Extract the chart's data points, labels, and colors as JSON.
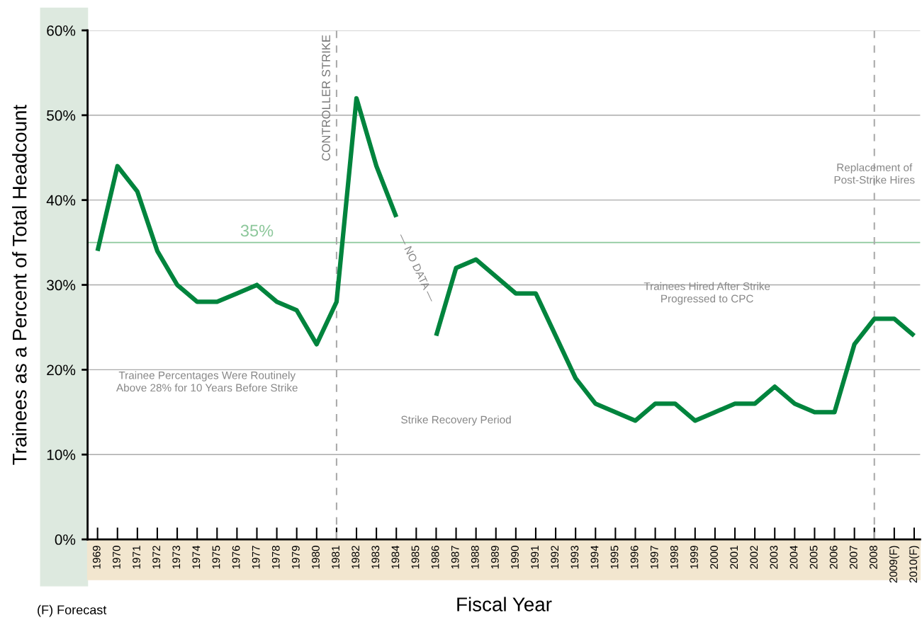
{
  "chart_data": {
    "type": "line",
    "xlabel": "Fiscal Year",
    "ylabel": "Trainees as a Percent of Total Headcount",
    "categories": [
      "1969",
      "1970",
      "1971",
      "1972",
      "1973",
      "1974",
      "1975",
      "1976",
      "1977",
      "1978",
      "1979",
      "1980",
      "1981",
      "1982",
      "1983",
      "1984",
      "1985",
      "1986",
      "1987",
      "1988",
      "1989",
      "1990",
      "1991",
      "1992",
      "1993",
      "1994",
      "1995",
      "1996",
      "1997",
      "1998",
      "1999",
      "2000",
      "2001",
      "2002",
      "2003",
      "2004",
      "2005",
      "2006",
      "2007",
      "2008",
      "2009(F)",
      "2010(F)"
    ],
    "series": [
      {
        "color": "#00843d",
        "values": [
          34,
          44,
          41,
          34,
          30,
          28,
          28,
          29,
          30,
          28,
          27,
          23,
          28,
          52,
          44,
          38,
          null,
          24,
          32,
          33,
          31,
          29,
          29,
          24,
          19,
          16,
          15,
          14,
          16,
          16,
          14,
          15,
          16,
          16,
          18,
          16,
          15,
          15,
          23,
          26,
          26,
          24
        ]
      }
    ],
    "ylim": [
      0,
      60
    ],
    "yticks": [
      {
        "value": 0,
        "label": "0%"
      },
      {
        "value": 10,
        "label": "10%"
      },
      {
        "value": 20,
        "label": "20%"
      },
      {
        "value": 30,
        "label": "30%"
      },
      {
        "value": 40,
        "label": "40%"
      },
      {
        "value": 50,
        "label": "50%"
      },
      {
        "value": 60,
        "label": "60%"
      }
    ],
    "grid": "y",
    "legend": false,
    "marker": "none",
    "line_style": "solid",
    "ref_lines": [
      {
        "axis": "y",
        "value": 35,
        "label": "35%",
        "color": "#8cc79a",
        "line_style": "solid"
      },
      {
        "axis": "x",
        "value": "1981",
        "label": "CONTROLLER STRIKE",
        "color": "#aaaaaa",
        "line_style": "dashed"
      },
      {
        "axis": "x",
        "value": "2008",
        "label": null,
        "color": "#aaaaaa",
        "line_style": "dashed"
      }
    ],
    "annotations": [
      "Trainee Percentages Were Routinely\nAbove 28% for 10 Years Before Strike",
      "Strike Recovery Period",
      "Trainees Hired After Strike\nProgressed to CPC",
      "Replacement of\nPost-Strike Hires",
      "— NO DATA —",
      "(F) Forecast"
    ]
  }
}
